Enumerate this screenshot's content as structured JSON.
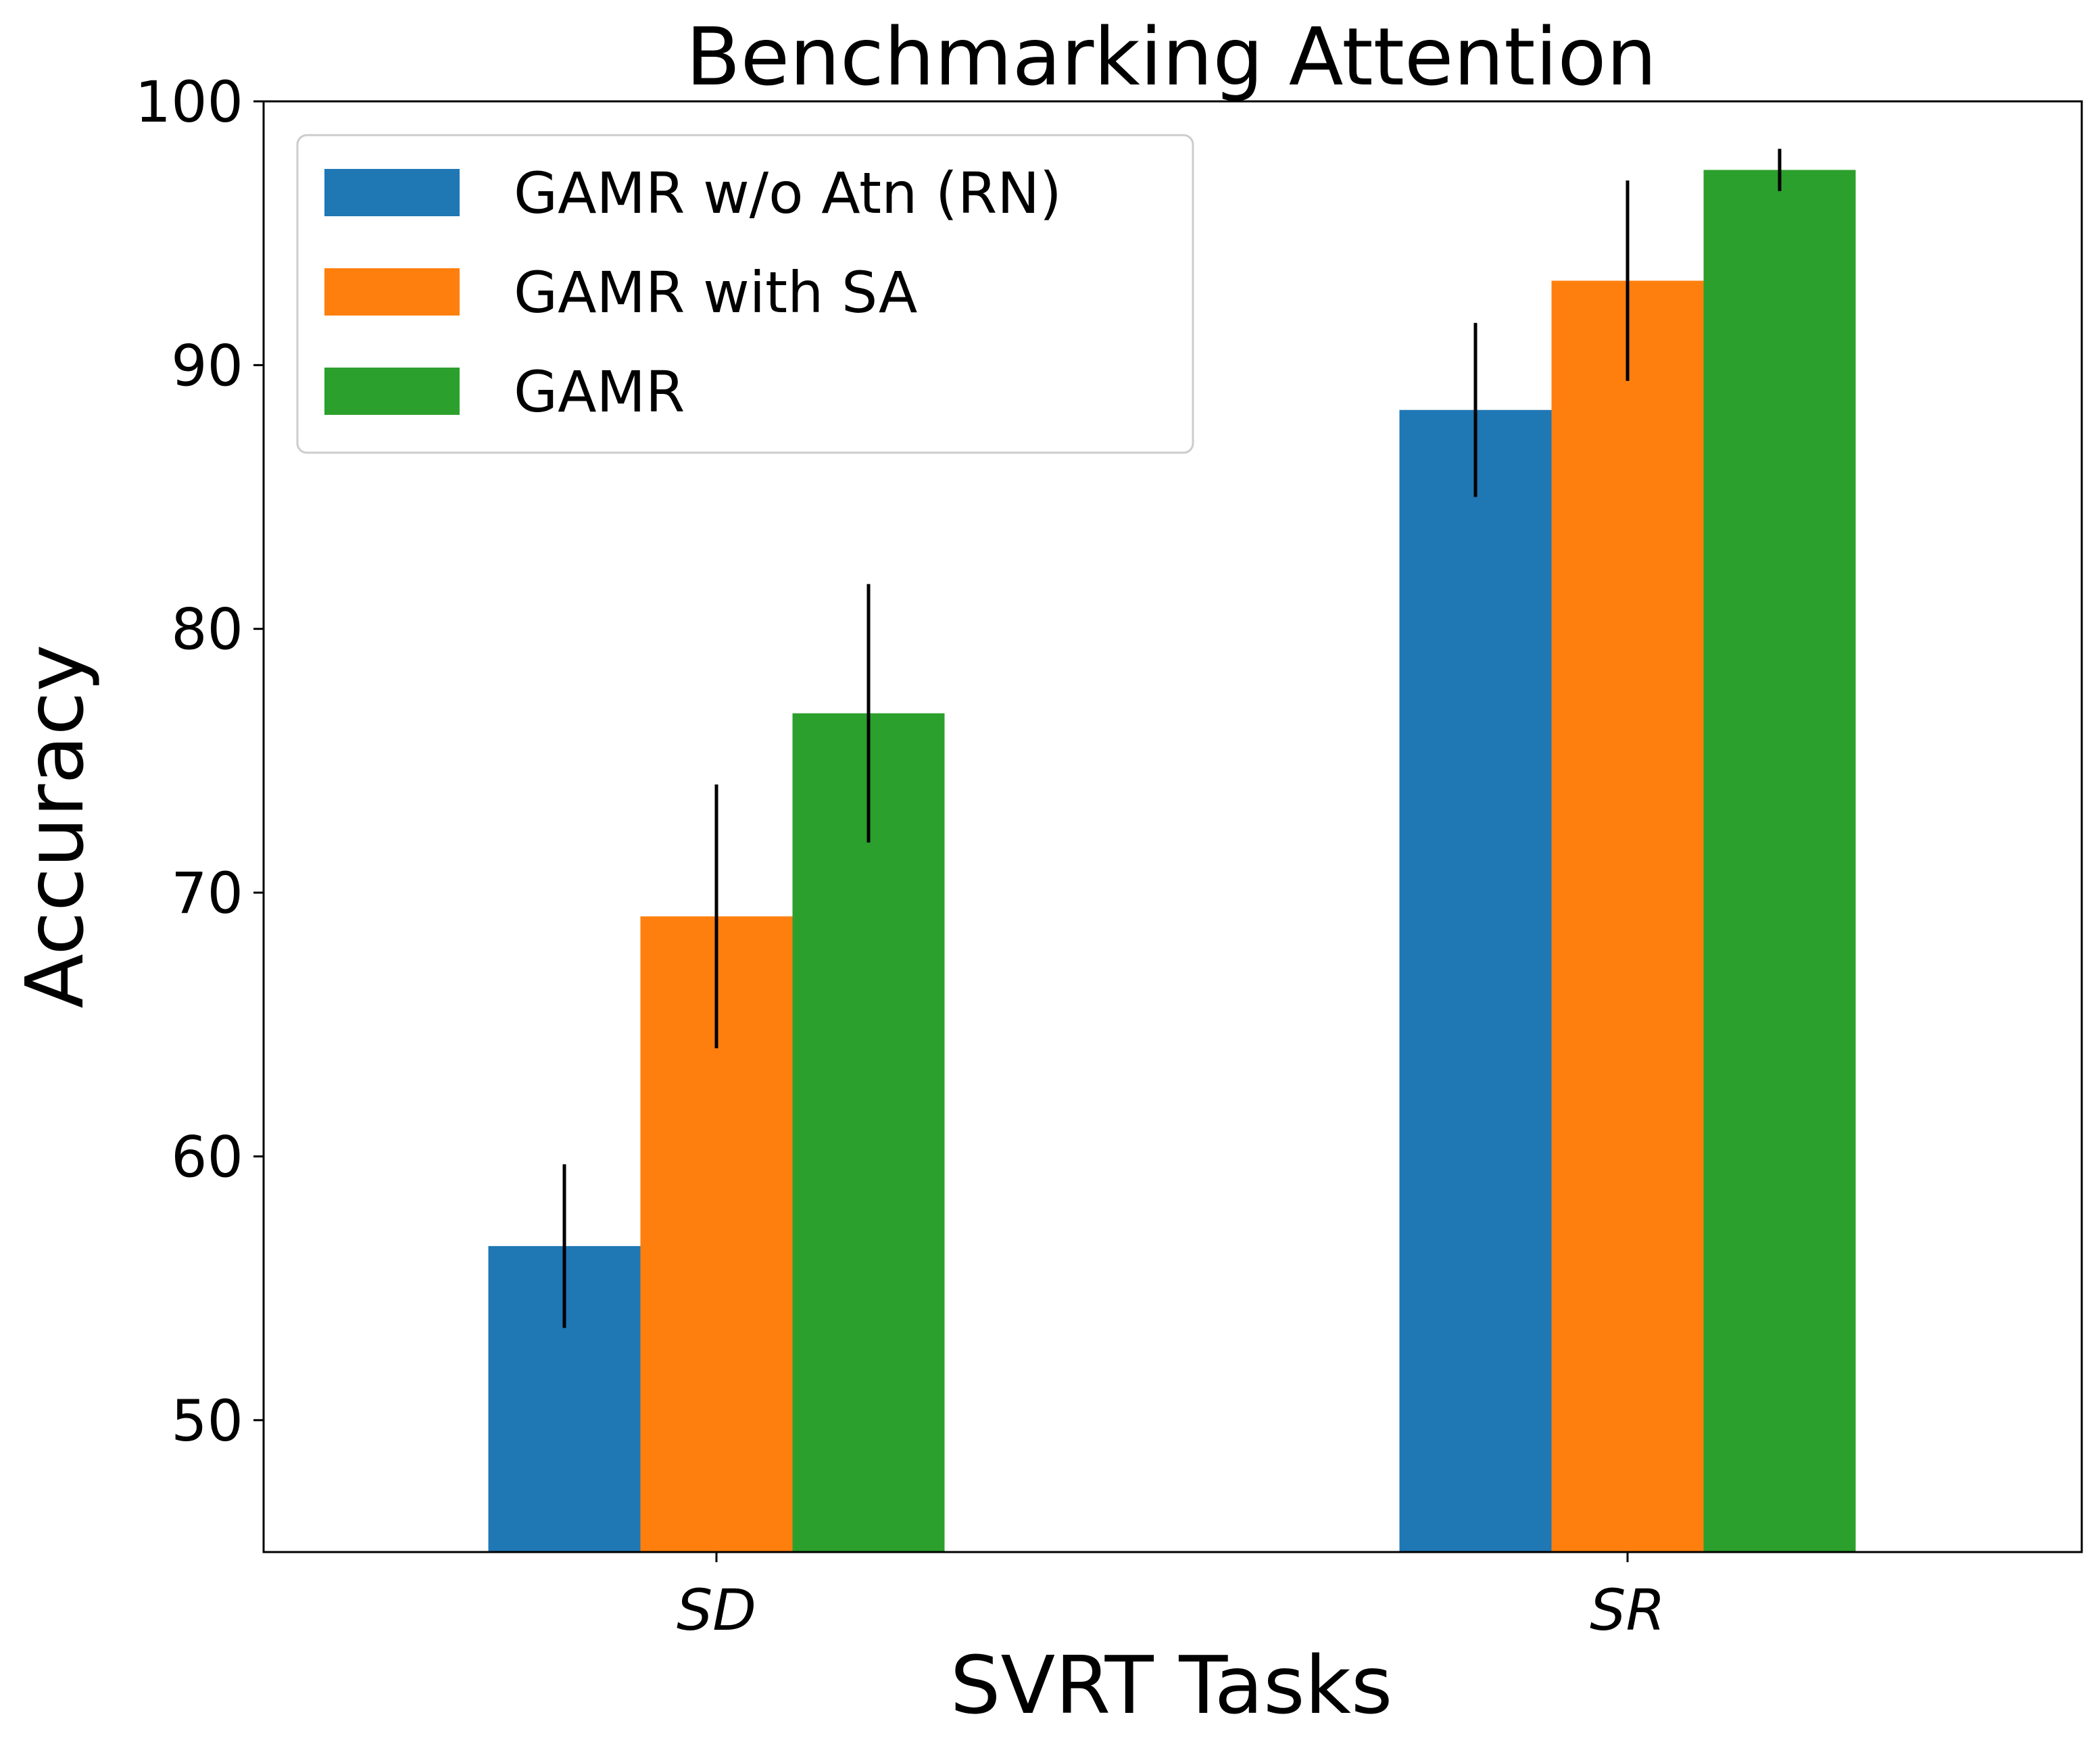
{
  "chart_data": {
    "type": "bar",
    "title": "Benchmarking Attention",
    "xlabel": "SVRT Tasks",
    "ylabel": "Accuracy",
    "categories": [
      "SD",
      "SR"
    ],
    "ylim": [
      45,
      100
    ],
    "yticks": [
      50,
      60,
      70,
      80,
      90,
      100
    ],
    "series": [
      {
        "name": "GAMR w/o Atn (RN)",
        "color": "#1f77b4",
        "values": [
          56.6,
          88.3
        ],
        "errors": [
          3.1,
          3.3
        ]
      },
      {
        "name": "GAMR with SA",
        "color": "#ff7f0e",
        "values": [
          69.1,
          93.2
        ],
        "errors": [
          5.0,
          3.8
        ]
      },
      {
        "name": "GAMR",
        "color": "#2ca02c",
        "values": [
          76.8,
          97.4
        ],
        "errors": [
          4.9,
          0.8
        ]
      }
    ],
    "legend_position": "top-left",
    "grid": false
  }
}
